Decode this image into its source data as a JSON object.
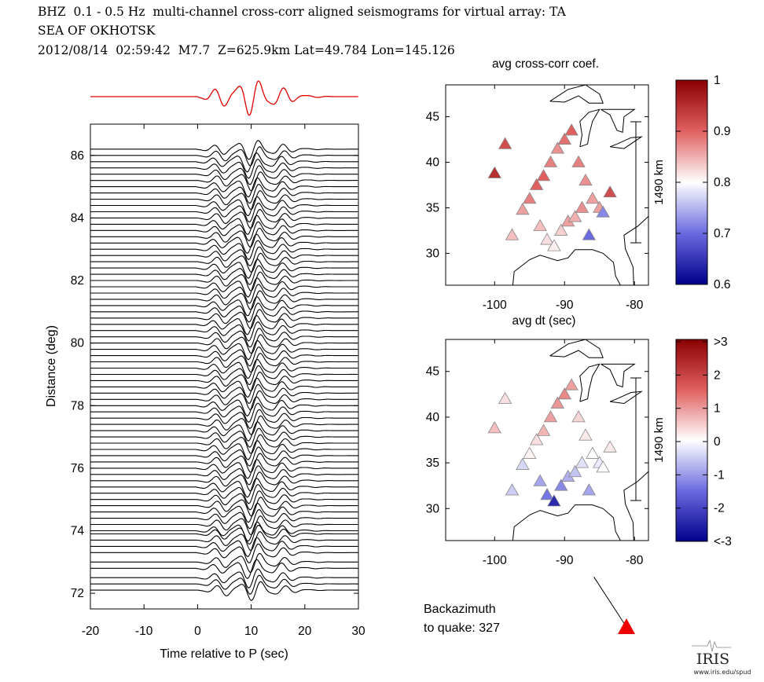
{
  "header": {
    "line1": "BHZ  0.1 - 0.5 Hz  multi-channel cross-corr aligned seismograms for virtual array: TA",
    "line2": "SEA OF OKHOTSK",
    "line3": "2012/08/14  02:59:42  M7.7  Z=625.9km Lat=49.784 Lon=145.126"
  },
  "chart_data": [
    {
      "type": "line",
      "name": "seismogram-section",
      "xlabel": "Time relative to P (sec)",
      "ylabel": "Distance (deg)",
      "xlim": [
        -20,
        30
      ],
      "ylim": [
        71.5,
        87
      ],
      "xticks": [
        -20,
        -10,
        0,
        10,
        20,
        30
      ],
      "yticks": [
        72,
        74,
        76,
        78,
        80,
        82,
        84,
        86
      ],
      "trace_color": "#000000",
      "stack_color": "#e00000",
      "signal_start_sec": 0,
      "distances": [
        72.1,
        72.3,
        72.5,
        72.8,
        73.0,
        73.3,
        73.5,
        73.7,
        73.9,
        74.0,
        74.2,
        74.4,
        74.6,
        74.8,
        75.0,
        75.2,
        75.4,
        75.6,
        75.8,
        76.0,
        76.2,
        76.4,
        76.6,
        76.8,
        77.0,
        77.2,
        77.4,
        77.6,
        77.8,
        78.0,
        78.2,
        78.4,
        78.6,
        78.8,
        79.0,
        79.2,
        79.4,
        79.6,
        79.8,
        80.0,
        80.2,
        80.4,
        80.6,
        80.8,
        81.0,
        81.2,
        81.4,
        81.6,
        81.8,
        82.0,
        82.2,
        82.4,
        82.6,
        82.8,
        83.0,
        83.2,
        83.4,
        83.6,
        83.8,
        84.0,
        84.2,
        84.4,
        84.6,
        84.8,
        85.0,
        85.2,
        85.4,
        85.6,
        85.8,
        86.0,
        86.2
      ]
    },
    {
      "type": "scatter",
      "name": "avg-cross-corr-coef-map",
      "title": "avg cross-corr coef.",
      "xlim": [
        -107,
        -78
      ],
      "ylim": [
        26.5,
        48.5
      ],
      "xticks": [
        -100,
        -90,
        -80
      ],
      "yticks": [
        30,
        35,
        40,
        45
      ],
      "scale_label": "1490 km",
      "colorbar": {
        "min": 0.6,
        "max": 1,
        "ticks": [
          "1",
          "0.9",
          "0.8",
          "0.7",
          "0.6"
        ]
      },
      "station_lons": [
        -100.0,
        -98.5,
        -97.5,
        -96.0,
        -95.0,
        -94.0,
        -93.0,
        -92.0,
        -91.0,
        -90.0,
        -89.0,
        -88.0,
        -87.0,
        -86.0,
        -85.0,
        -84.5,
        -83.5,
        -93.5,
        -92.5,
        -91.5,
        -90.5,
        -89.5,
        -88.5,
        -87.5,
        -86.5
      ],
      "station_lats": [
        38.8,
        42.0,
        32.0,
        34.8,
        36.0,
        37.5,
        38.5,
        40.0,
        41.5,
        42.5,
        43.5,
        40.0,
        38.0,
        36.0,
        35.0,
        34.5,
        36.7,
        33.0,
        31.5,
        30.8,
        32.5,
        33.5,
        34.0,
        35.0,
        32.0
      ],
      "station_values": [
        0.95,
        0.92,
        0.84,
        0.86,
        0.88,
        0.9,
        0.9,
        0.88,
        0.87,
        0.89,
        0.9,
        0.88,
        0.87,
        0.86,
        0.86,
        0.72,
        0.92,
        0.84,
        0.82,
        0.81,
        0.83,
        0.86,
        0.85,
        0.87,
        0.7
      ]
    },
    {
      "type": "scatter",
      "name": "avg-dt-map",
      "title": "avg dt (sec)",
      "xlim": [
        -107,
        -78
      ],
      "ylim": [
        26.5,
        48.5
      ],
      "xticks": [
        -100,
        -90,
        -80
      ],
      "yticks": [
        30,
        35,
        40,
        45
      ],
      "scale_label": "1490 km",
      "colorbar": {
        "min": -3,
        "max": 3,
        "ticks": [
          ">3",
          "2",
          "1",
          "0",
          "-1",
          "-2",
          "<-3"
        ]
      },
      "station_lons": [
        -100.0,
        -98.5,
        -97.5,
        -96.0,
        -95.0,
        -94.0,
        -93.0,
        -92.0,
        -91.0,
        -90.0,
        -89.0,
        -88.0,
        -87.0,
        -86.0,
        -85.0,
        -84.5,
        -83.5,
        -93.5,
        -92.5,
        -91.5,
        -90.5,
        -89.5,
        -88.5,
        -87.5,
        -86.5
      ],
      "station_lats": [
        38.8,
        42.0,
        32.0,
        34.8,
        36.0,
        37.5,
        38.5,
        40.0,
        41.5,
        42.5,
        43.5,
        40.0,
        38.0,
        36.0,
        35.0,
        34.5,
        36.7,
        33.0,
        31.5,
        30.8,
        32.5,
        33.5,
        34.0,
        35.0,
        32.0
      ],
      "station_values": [
        0.6,
        0.3,
        -0.5,
        -0.4,
        0.1,
        0.3,
        0.7,
        0.9,
        1.0,
        1.1,
        0.9,
        0.4,
        0.2,
        0.0,
        -0.2,
        0.0,
        0.2,
        -0.9,
        -1.4,
        -2.4,
        -1.2,
        -0.8,
        -0.6,
        -0.3,
        -0.9
      ]
    }
  ],
  "backazimuth": {
    "label_line1": "Backazimuth",
    "label_line2": "to quake:  327",
    "value_deg": 327,
    "marker_color": "#ee0000"
  },
  "logo": {
    "text": "IRIS",
    "url_text": "www.iris.edu/spud"
  }
}
